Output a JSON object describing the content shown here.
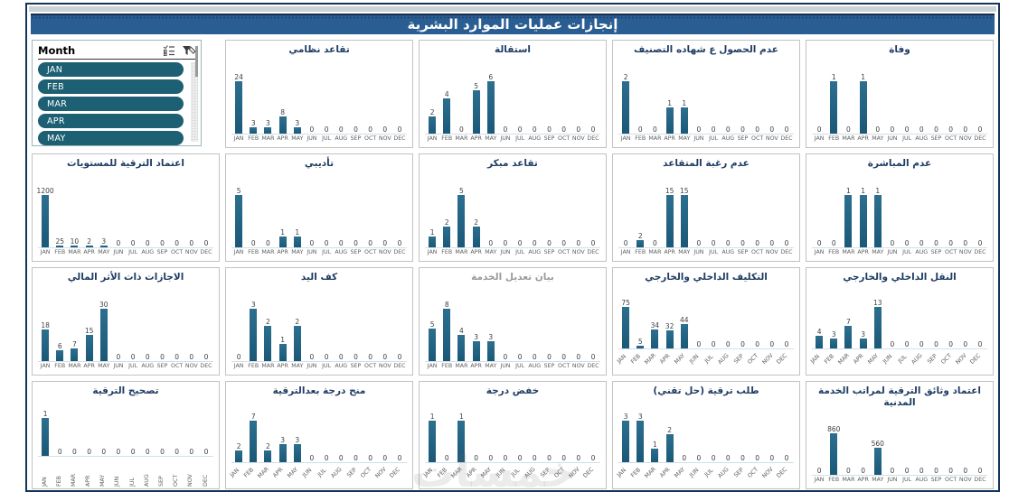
{
  "header": {
    "title": "إنجازات عمليات الموارد البشرية"
  },
  "slicer": {
    "title": "Month",
    "items": [
      "JAN",
      "FEB",
      "MAR",
      "APR",
      "MAY"
    ],
    "icons": {
      "multi_select": "multi-select-icon",
      "clear_filter": "clear-filter-icon"
    }
  },
  "watermark": "خمسات",
  "colors": {
    "bar": "#1f5f7f",
    "title_bar": "#2a5d92",
    "slicer_pill": "#1d5f73",
    "chart_title": "#1f3c63",
    "muted_title": "#9a9a9a",
    "frame": "#14355a",
    "axis_line": "#cfe0ea"
  },
  "chart_data": [
    {
      "type": "bar",
      "title": "تقاعد نظامي",
      "label_style": "horizontal",
      "categories": [
        "JAN",
        "FEB",
        "MAR",
        "APR",
        "MAY",
        "JUN",
        "JUL",
        "AUG",
        "SEP",
        "OCT",
        "NOV",
        "DEC"
      ],
      "values": [
        24,
        3,
        3,
        8,
        3,
        0,
        0,
        0,
        0,
        0,
        0,
        0
      ]
    },
    {
      "type": "bar",
      "title": "استقالة",
      "label_style": "horizontal",
      "categories": [
        "JAN",
        "FEB",
        "MAR",
        "APR",
        "MAY",
        "JUN",
        "JUL",
        "AUG",
        "SEP",
        "OCT",
        "NOV",
        "DEC"
      ],
      "values": [
        2,
        4,
        0,
        5,
        6,
        0,
        0,
        0,
        0,
        0,
        0,
        0
      ]
    },
    {
      "type": "bar",
      "title": "عدم الحصول ع شهاده التصنيف",
      "label_style": "horizontal",
      "categories": [
        "JAN",
        "FEB",
        "MAR",
        "APR",
        "MAY",
        "JUN",
        "JUL",
        "AUG",
        "SEP",
        "OCT",
        "NOV",
        "DEC"
      ],
      "values": [
        2,
        0,
        0,
        1,
        1,
        0,
        0,
        0,
        0,
        0,
        0,
        0
      ]
    },
    {
      "type": "bar",
      "title": "وفاة",
      "label_style": "horizontal",
      "categories": [
        "JAN",
        "FEB",
        "MAR",
        "APR",
        "MAY",
        "JUN",
        "JUL",
        "AUG",
        "SEP",
        "OCT",
        "NOV",
        "DEC"
      ],
      "values": [
        0,
        1,
        0,
        1,
        0,
        0,
        0,
        0,
        0,
        0,
        0,
        0
      ]
    },
    {
      "type": "bar",
      "title": "اعتماد الترقية للمستويات",
      "label_style": "horizontal",
      "categories": [
        "JAN",
        "FEB",
        "MAR",
        "APR",
        "MAY",
        "JUN",
        "JUL",
        "AUG",
        "SEP",
        "OCT",
        "NOV",
        "DEC"
      ],
      "values": [
        1200,
        25,
        10,
        2,
        3,
        0,
        0,
        0,
        0,
        0,
        0,
        0
      ]
    },
    {
      "type": "bar",
      "title": "تأديبي",
      "label_style": "horizontal",
      "categories": [
        "JAN",
        "FEB",
        "MAR",
        "APR",
        "MAY",
        "JUN",
        "JUL",
        "AUG",
        "SEP",
        "OCT",
        "NOV",
        "DEC"
      ],
      "values": [
        5,
        0,
        0,
        1,
        1,
        0,
        0,
        0,
        0,
        0,
        0,
        0
      ]
    },
    {
      "type": "bar",
      "title": "تقاعد مبكر",
      "label_style": "horizontal",
      "categories": [
        "JAN",
        "FEB",
        "MAR",
        "APR",
        "MAY",
        "JUN",
        "JUL",
        "AUG",
        "SEP",
        "OCT",
        "NOV",
        "DEC"
      ],
      "values": [
        1,
        2,
        5,
        2,
        0,
        0,
        0,
        0,
        0,
        0,
        0,
        0
      ]
    },
    {
      "type": "bar",
      "title": "عدم رغبة المتقاعد",
      "label_style": "horizontal",
      "categories": [
        "JAN",
        "FEB",
        "MAR",
        "APR",
        "MAY",
        "JUN",
        "JUL",
        "AUG",
        "SEP",
        "OCT",
        "NOV",
        "DEC"
      ],
      "values": [
        0,
        2,
        0,
        15,
        15,
        0,
        0,
        0,
        0,
        0,
        0,
        0
      ]
    },
    {
      "type": "bar",
      "title": "عدم المباشرة",
      "label_style": "horizontal",
      "categories": [
        "JAN",
        "FEB",
        "MAR",
        "APR",
        "MAY",
        "JUN",
        "JUL",
        "AUG",
        "SEP",
        "OCT",
        "NOV",
        "DEC"
      ],
      "values": [
        0,
        0,
        1,
        1,
        1,
        0,
        0,
        0,
        0,
        0,
        0,
        0
      ]
    },
    {
      "type": "bar",
      "title": "الاجازات ذات الأثر المالي",
      "label_style": "horizontal",
      "categories": [
        "JAN",
        "FEB",
        "MAR",
        "APR",
        "MAY",
        "JUN",
        "JUL",
        "AUG",
        "SEP",
        "OCT",
        "NOV",
        "DEC"
      ],
      "values": [
        18,
        6,
        7,
        15,
        30,
        0,
        0,
        0,
        0,
        0,
        0,
        0
      ]
    },
    {
      "type": "bar",
      "title": "كف اليد",
      "label_style": "horizontal",
      "categories": [
        "JAN",
        "FEB",
        "MAR",
        "APR",
        "MAY",
        "JUN",
        "JUL",
        "AUG",
        "SEP",
        "OCT",
        "NOV",
        "DEC"
      ],
      "values": [
        0,
        3,
        2,
        1,
        2,
        0,
        0,
        0,
        0,
        0,
        0,
        0
      ]
    },
    {
      "type": "bar",
      "title": "بيان تعديل الخدمة",
      "label_style": "horizontal",
      "title_muted": true,
      "categories": [
        "JAN",
        "FEB",
        "MAR",
        "APR",
        "MAY",
        "JUN",
        "JUL",
        "AUG",
        "SEP",
        "OCT",
        "NOV",
        "DEC"
      ],
      "values": [
        5,
        8,
        4,
        3,
        3,
        0,
        0,
        0,
        0,
        0,
        0,
        0
      ]
    },
    {
      "type": "bar",
      "title": "التكليف الداخلي والخارجي",
      "label_style": "diagonal",
      "categories": [
        "JAN",
        "FEB",
        "MAR",
        "APR",
        "MAY",
        "JUN",
        "JUL",
        "AUG",
        "SEP",
        "OCT",
        "NOV",
        "DEC"
      ],
      "values": [
        75,
        5,
        34,
        32,
        44,
        0,
        0,
        0,
        0,
        0,
        0,
        0
      ]
    },
    {
      "type": "bar",
      "title": "النقل الداخلي والخارجي",
      "label_style": "diagonal",
      "categories": [
        "JAN",
        "FEB",
        "MAR",
        "APR",
        "MAY",
        "JUN",
        "JUL",
        "AUG",
        "SEP",
        "OCT",
        "NOV",
        "DEC"
      ],
      "values": [
        4,
        3,
        7,
        3,
        13,
        0,
        0,
        0,
        0,
        0,
        0,
        0
      ]
    },
    {
      "type": "bar",
      "title": "تصحيح الترقية",
      "label_style": "vertical",
      "categories": [
        "JAN",
        "FEB",
        "MAR",
        "APR",
        "MAY",
        "JUN",
        "JUL",
        "AUG",
        "SEP",
        "OCT",
        "NOV",
        "DEC"
      ],
      "values": [
        1,
        0,
        0,
        0,
        0,
        0,
        0,
        0,
        0,
        0,
        0,
        0
      ]
    },
    {
      "type": "bar",
      "title": "منح درجة بعدالترقية",
      "label_style": "diagonal",
      "categories": [
        "JAN",
        "FEB",
        "MAR",
        "APR",
        "MAY",
        "JUN",
        "JUL",
        "AUG",
        "SEP",
        "OCT",
        "NOV",
        "DEC"
      ],
      "values": [
        2,
        7,
        2,
        3,
        3,
        0,
        0,
        0,
        0,
        0,
        0,
        0
      ]
    },
    {
      "type": "bar",
      "title": "خفض درجة",
      "label_style": "diagonal",
      "categories": [
        "JAN",
        "FEB",
        "MAR",
        "APR",
        "MAY",
        "JUN",
        "JUL",
        "AUG",
        "SEP",
        "OCT",
        "NOV",
        "DEC"
      ],
      "values": [
        1,
        0,
        1,
        0,
        0,
        0,
        0,
        0,
        0,
        0,
        0,
        0
      ]
    },
    {
      "type": "bar",
      "title": "طلب ترقية (حل تقني)",
      "label_style": "diagonal",
      "categories": [
        "JAN",
        "FEB",
        "MAR",
        "APR",
        "MAY",
        "JUN",
        "JUL",
        "AUG",
        "SEP",
        "OCT",
        "NOV",
        "DEC"
      ],
      "values": [
        3,
        3,
        1,
        2,
        0,
        0,
        0,
        0,
        0,
        0,
        0,
        0
      ]
    },
    {
      "type": "bar",
      "title": "اعتماد وثائق الترقية لمراتب الخدمة المدنية",
      "label_style": "horizontal",
      "categories": [
        "JAN",
        "FEB",
        "MAR",
        "APR",
        "MAY",
        "JUN",
        "JUL",
        "AUG",
        "SEP",
        "OCT",
        "NOV",
        "DEC"
      ],
      "values": [
        0,
        860,
        0,
        0,
        560,
        0,
        0,
        0,
        0,
        0,
        0,
        0
      ]
    }
  ]
}
